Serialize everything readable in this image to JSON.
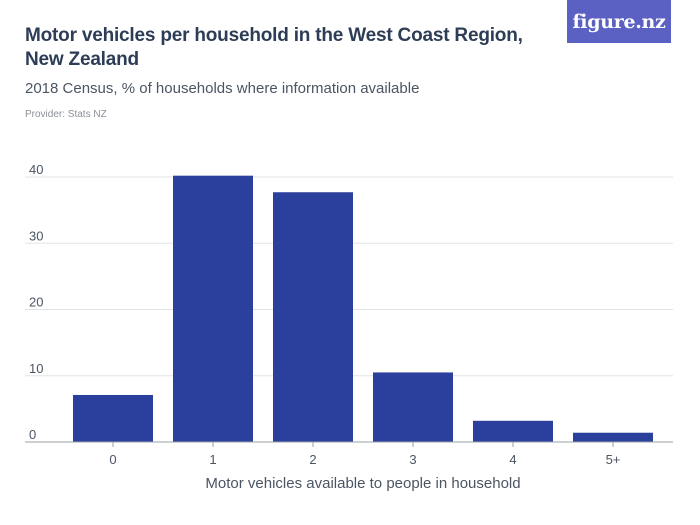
{
  "header": {
    "title": "Motor vehicles per household in the West Coast Region, New Zealand",
    "subtitle": "2018 Census, % of households where information available",
    "provider": "Provider: Stats NZ",
    "brand": "figure.nz"
  },
  "colors": {
    "bar": "#2b3f9c",
    "grid": "#e1e3e6",
    "axis": "#9aa0a6",
    "brand": "#5a61c3"
  },
  "chart_data": {
    "type": "bar",
    "title": "Motor vehicles per household in the West Coast Region, New Zealand",
    "subtitle": "2018 Census, % of households where information available",
    "categories": [
      "0",
      "1",
      "2",
      "3",
      "4",
      "5+"
    ],
    "values": [
      7.1,
      40.2,
      37.7,
      10.5,
      3.2,
      1.4
    ],
    "xlabel": "Motor vehicles available to people in household",
    "ylabel": "",
    "ylim": [
      0,
      40
    ],
    "yticks": [
      0,
      10,
      20,
      30,
      40
    ],
    "grid": true
  }
}
